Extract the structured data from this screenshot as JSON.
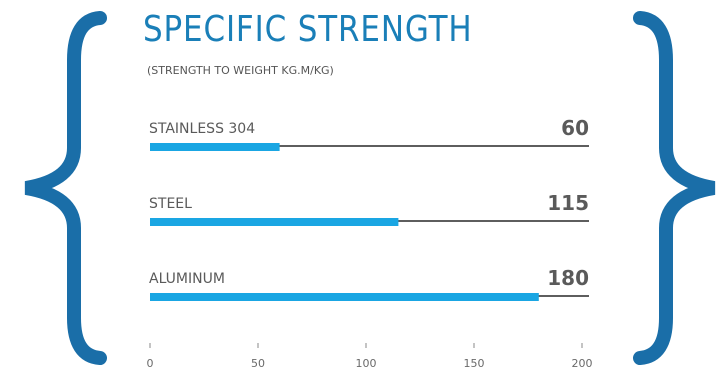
{
  "chart_data": {
    "type": "bar",
    "orientation": "horizontal",
    "title": "SPECIFIC STRENGTH",
    "subtitle": "(STRENGTH TO WEIGHT KG.M/KG)",
    "categories": [
      "STAINLESS 304",
      "STEEL",
      "ALUMINUM"
    ],
    "values": [
      60,
      115,
      180
    ],
    "value_labels": [
      "60",
      "115",
      "180"
    ],
    "xlim": [
      0,
      200
    ],
    "ticks": [
      0,
      50,
      100,
      150,
      200
    ],
    "tick_labels": [
      "0",
      "50",
      "100",
      "150",
      "200"
    ],
    "grid": false,
    "legend": "none"
  },
  "colors": {
    "bar": "#1aa6e3",
    "track": "#5e5e5e",
    "brace": "#1a6ea8",
    "title": "#1a7fb8",
    "text": "#5a5a5a"
  }
}
